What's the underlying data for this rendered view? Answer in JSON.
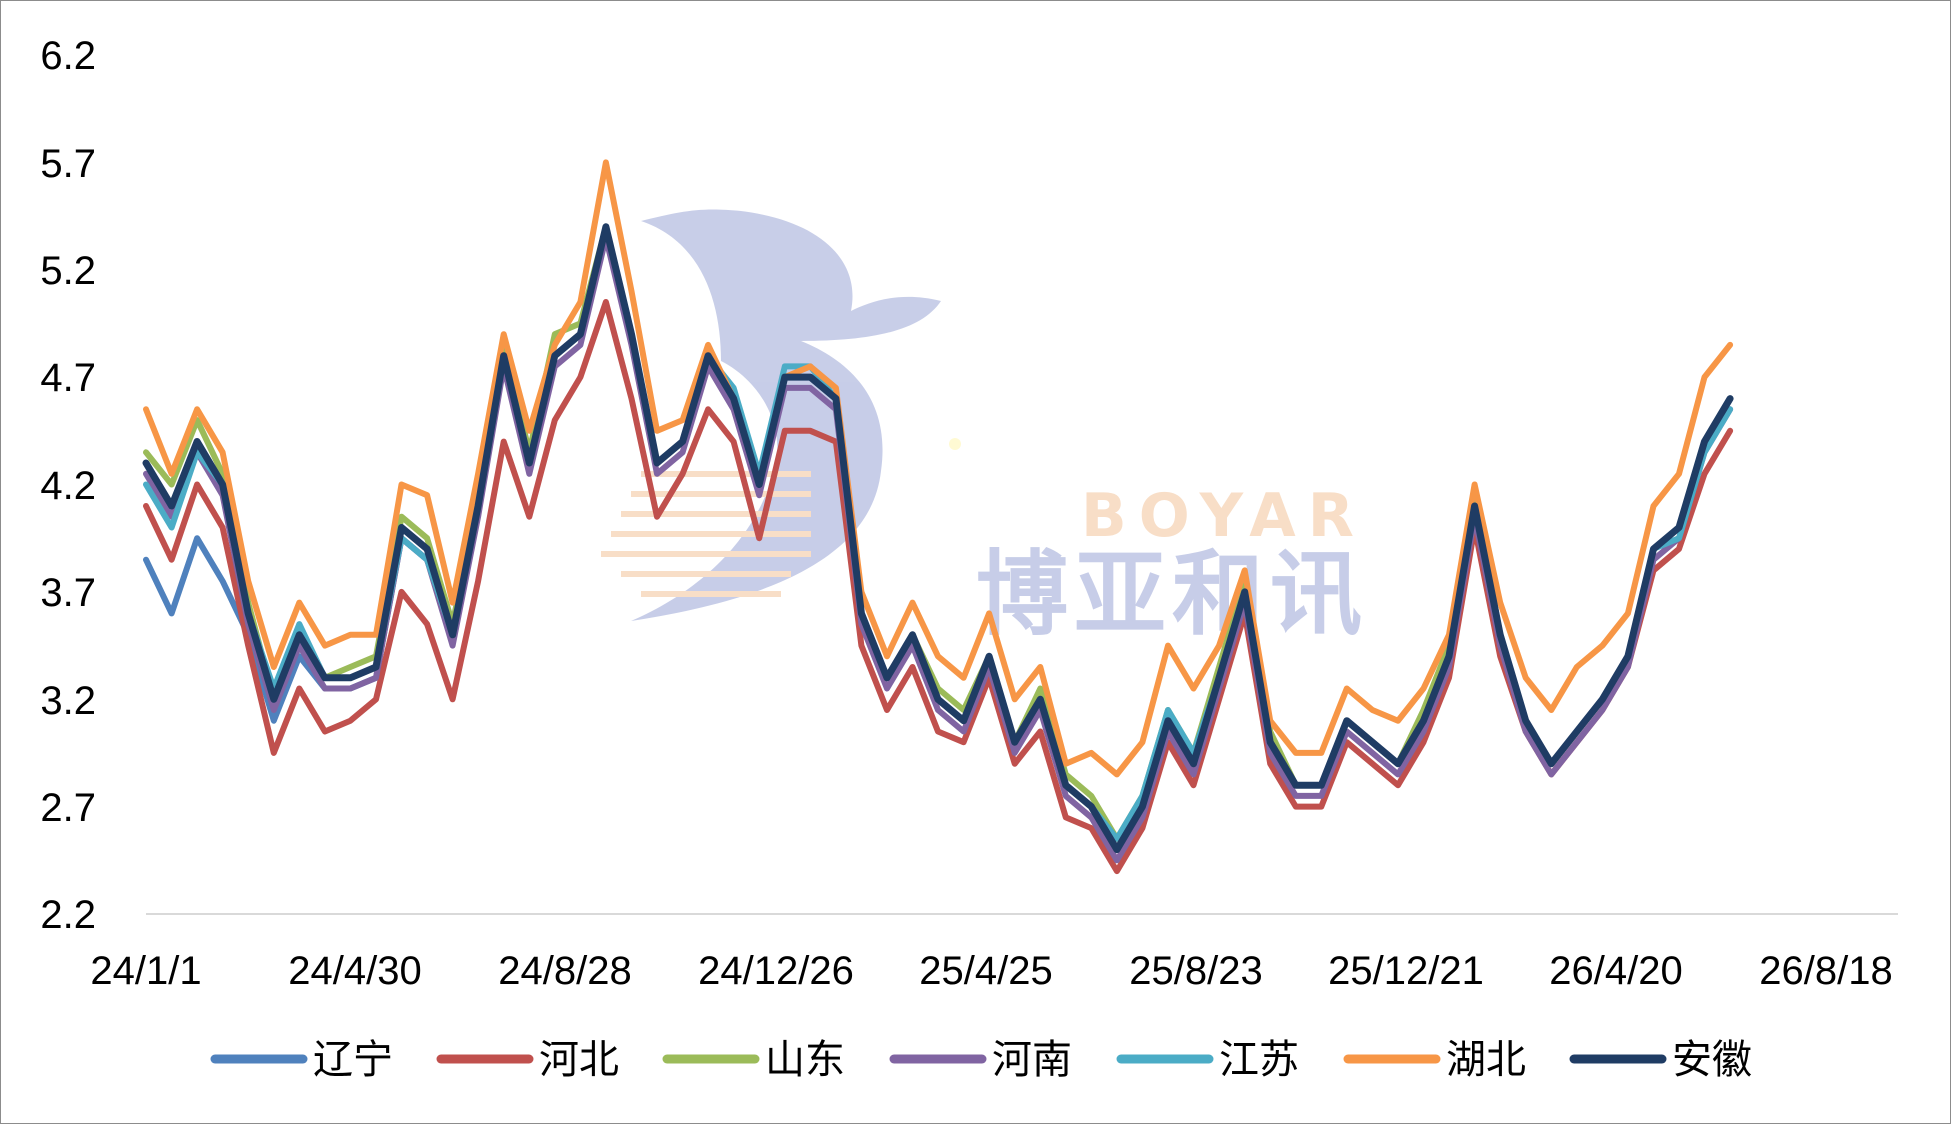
{
  "chart_data": {
    "type": "line",
    "title": "",
    "xlabel": "",
    "ylabel": "",
    "x_ticks": [
      "24/1/1",
      "24/4/30",
      "24/8/28",
      "24/12/26",
      "25/4/25",
      "25/8/23",
      "25/12/21",
      "26/4/20",
      "26/8/18"
    ],
    "y_ticks": [
      "6.2",
      "5.7",
      "5.2",
      "4.7",
      "4.2",
      "3.7",
      "3.2",
      "2.7",
      "2.2"
    ],
    "ylim": [
      2.2,
      6.2
    ],
    "xlim": [
      "2024-01-01",
      "2026-08-18"
    ],
    "grid": false,
    "legend_position": "bottom",
    "watermark": {
      "en": "BOYAR",
      "zh": "博亚和讯"
    },
    "colors": {
      "辽宁": "#4f81bd",
      "河北": "#c0504d",
      "山东": "#9bbb59",
      "河南": "#8064a2",
      "江苏": "#4bacc6",
      "湖北": "#f79646",
      "安徽": "#1f3c64"
    },
    "base_dates": [
      "2024-01-01",
      "2024-01-15",
      "2024-01-29",
      "2024-02-12",
      "2024-02-26",
      "2024-03-11",
      "2024-03-25",
      "2024-04-08",
      "2024-04-22",
      "2024-05-06",
      "2024-05-20",
      "2024-06-03",
      "2024-06-17",
      "2024-07-01",
      "2024-07-15",
      "2024-07-29",
      "2024-08-12",
      "2024-08-26",
      "2024-09-09",
      "2024-09-23",
      "2024-10-07",
      "2024-10-21",
      "2024-11-04",
      "2024-11-18",
      "2024-12-02",
      "2024-12-16",
      "2024-12-30",
      "2025-01-13",
      "2025-01-27",
      "2025-02-10",
      "2025-02-24",
      "2025-03-10",
      "2025-03-24",
      "2025-04-07",
      "2025-04-21",
      "2025-05-05",
      "2025-05-19",
      "2025-06-02",
      "2025-06-16",
      "2025-06-30",
      "2025-07-14",
      "2025-07-28",
      "2025-08-11",
      "2025-08-25",
      "2025-09-08",
      "2025-09-22",
      "2025-10-06",
      "2025-10-20",
      "2025-11-03",
      "2025-11-17",
      "2025-12-01",
      "2025-12-15",
      "2025-12-29",
      "2026-01-12",
      "2026-01-26",
      "2026-02-09",
      "2026-02-23",
      "2026-03-09",
      "2026-03-23",
      "2026-04-06",
      "2026-04-20",
      "2026-05-04",
      "2026-05-18"
    ],
    "series": [
      {
        "name": "辽宁",
        "offsets": [
          -0.45,
          -0.5,
          -0.45,
          -0.45,
          -0.1,
          -0.1,
          -0.1,
          -0.05,
          -0.05,
          -0.05,
          -0.05,
          -0.05,
          0,
          0,
          0,
          0,
          0,
          0,
          0,
          0,
          0,
          0,
          0,
          0,
          0,
          0,
          0,
          0,
          0,
          0,
          0,
          0,
          0,
          0,
          0,
          0,
          0,
          0,
          0,
          0,
          0,
          0,
          0,
          0,
          0,
          0,
          0,
          0,
          0,
          0,
          0,
          0,
          0,
          0,
          0,
          0,
          0,
          0,
          0,
          0,
          0,
          0,
          0
        ]
      },
      {
        "name": "河北",
        "offsets": [
          -0.2,
          -0.25,
          -0.2,
          -0.2,
          -0.15,
          -0.25,
          -0.25,
          -0.25,
          -0.2,
          -0.15,
          -0.3,
          -0.35,
          -0.3,
          -0.35,
          -0.4,
          -0.25,
          -0.3,
          -0.2,
          -0.35,
          -0.3,
          -0.25,
          -0.15,
          -0.25,
          -0.2,
          -0.25,
          -0.25,
          -0.25,
          -0.2,
          -0.15,
          -0.15,
          -0.15,
          -0.15,
          -0.1,
          -0.1,
          -0.1,
          -0.15,
          -0.15,
          -0.1,
          -0.1,
          -0.1,
          -0.1,
          -0.1,
          -0.1,
          -0.1,
          -0.1,
          -0.1,
          -0.1,
          -0.1,
          -0.1,
          -0.1,
          -0.1,
          -0.1,
          -0.1,
          -0.1,
          -0.05,
          -0.05,
          -0.05,
          -0.05,
          -0.05,
          -0.1,
          -0.1,
          -0.15,
          -0.15
        ]
      },
      {
        "name": "山东",
        "offsets": [
          0.05,
          0.1,
          0.1,
          0.05,
          0.05,
          0,
          0,
          0,
          0.05,
          0.05,
          0.05,
          0.05,
          0.05,
          0.05,
          0.05,
          0.05,
          0.1,
          0.05,
          0,
          0,
          0,
          0,
          0,
          0,
          0,
          0,
          0,
          0,
          0,
          0,
          0,
          0.05,
          0.05,
          0,
          0,
          0.05,
          0.05,
          0.05,
          0.05,
          0.05,
          0.05,
          0.05,
          0.05,
          0.05,
          0.05,
          0,
          0,
          0,
          0,
          0,
          0.05,
          0.05,
          0.05,
          0,
          0,
          0,
          0,
          0,
          0,
          0,
          0,
          0,
          0
        ]
      },
      {
        "name": "河南",
        "offsets": [
          -0.05,
          -0.05,
          -0.05,
          -0.05,
          -0.05,
          -0.05,
          -0.05,
          -0.05,
          -0.05,
          -0.05,
          -0.05,
          -0.05,
          -0.05,
          -0.05,
          -0.05,
          -0.05,
          -0.05,
          -0.05,
          -0.05,
          -0.05,
          -0.05,
          -0.05,
          -0.05,
          -0.05,
          -0.05,
          -0.05,
          -0.05,
          -0.05,
          -0.05,
          -0.05,
          -0.05,
          -0.05,
          -0.05,
          -0.05,
          -0.05,
          -0.05,
          -0.05,
          -0.05,
          -0.05,
          -0.05,
          -0.05,
          -0.05,
          -0.05,
          -0.05,
          -0.05,
          -0.05,
          -0.05,
          -0.05,
          -0.05,
          -0.05,
          -0.05,
          -0.05,
          -0.05,
          -0.05,
          -0.05,
          -0.05,
          -0.05,
          -0.05,
          -0.05,
          -0.05,
          -0.05,
          -0.05,
          -0.05
        ]
      },
      {
        "name": "江苏",
        "offsets": [
          -0.1,
          -0.1,
          -0.05,
          0,
          0,
          0.05,
          0.05,
          0,
          0,
          0,
          -0.05,
          -0.05,
          0,
          0,
          0,
          0,
          0,
          0,
          0,
          0,
          0,
          0,
          0,
          0.05,
          0.05,
          0.05,
          0.05,
          0,
          0,
          0,
          0,
          0,
          0,
          0,
          0,
          0,
          0,
          0,
          0.05,
          0.05,
          0.05,
          0.05,
          0,
          0,
          0,
          0,
          0,
          0,
          0,
          0,
          0,
          0,
          0,
          0,
          0,
          0,
          0,
          0,
          0,
          0,
          -0.05,
          -0.05,
          -0.05
        ]
      },
      {
        "name": "湖北",
        "offsets": [
          0.25,
          0.15,
          0.15,
          0.15,
          0.15,
          0.15,
          0.15,
          0.15,
          0.2,
          0.15,
          0.2,
          0.25,
          0.15,
          0.15,
          0.1,
          0.15,
          0.05,
          0.15,
          0.3,
          0.2,
          0.15,
          0.1,
          0.05,
          0,
          0,
          0,
          0.05,
          0.05,
          0.1,
          0.1,
          0.15,
          0.2,
          0.2,
          0.2,
          0.2,
          0.15,
          0.1,
          0.25,
          0.35,
          0.3,
          0.35,
          0.35,
          0.15,
          0.1,
          0.1,
          0.15,
          0.15,
          0.15,
          0.15,
          0.2,
          0.15,
          0.1,
          0.1,
          0.15,
          0.2,
          0.25,
          0.3,
          0.25,
          0.2,
          0.2,
          0.25,
          0.3,
          0.25
        ]
      },
      {
        "name": "安徽",
        "offsets": [
          0,
          0,
          0,
          0,
          0,
          0,
          0,
          0,
          0,
          0,
          0,
          0,
          0,
          0,
          0,
          0,
          0,
          0,
          0,
          0,
          0,
          0,
          0,
          0,
          0,
          0,
          0,
          0,
          0,
          0,
          0,
          0,
          0,
          0,
          0,
          0,
          0,
          0,
          0,
          0,
          0,
          0,
          0,
          0,
          0,
          0,
          0,
          0,
          0,
          0,
          0,
          0,
          0,
          0,
          0,
          0,
          0,
          0,
          0,
          0,
          0,
          0,
          0
        ]
      }
    ],
    "base_values": [
      4.3,
      4.1,
      4.4,
      4.2,
      3.6,
      3.2,
      3.5,
      3.3,
      3.3,
      3.35,
      4.0,
      3.9,
      3.5,
      4.1,
      4.8,
      4.3,
      4.8,
      4.9,
      5.4,
      4.9,
      4.3,
      4.4,
      4.8,
      4.6,
      4.2,
      4.7,
      4.7,
      4.6,
      3.6,
      3.3,
      3.5,
      3.2,
      3.1,
      3.4,
      3.0,
      3.2,
      2.8,
      2.7,
      2.5,
      2.7,
      3.1,
      2.9,
      3.3,
      3.7,
      3.0,
      2.8,
      2.8,
      3.1,
      3.0,
      2.9,
      3.1,
      3.4,
      4.1,
      3.5,
      3.1,
      2.9,
      3.05,
      3.2,
      3.4,
      3.9,
      4.0,
      4.4,
      4.6
    ]
  }
}
